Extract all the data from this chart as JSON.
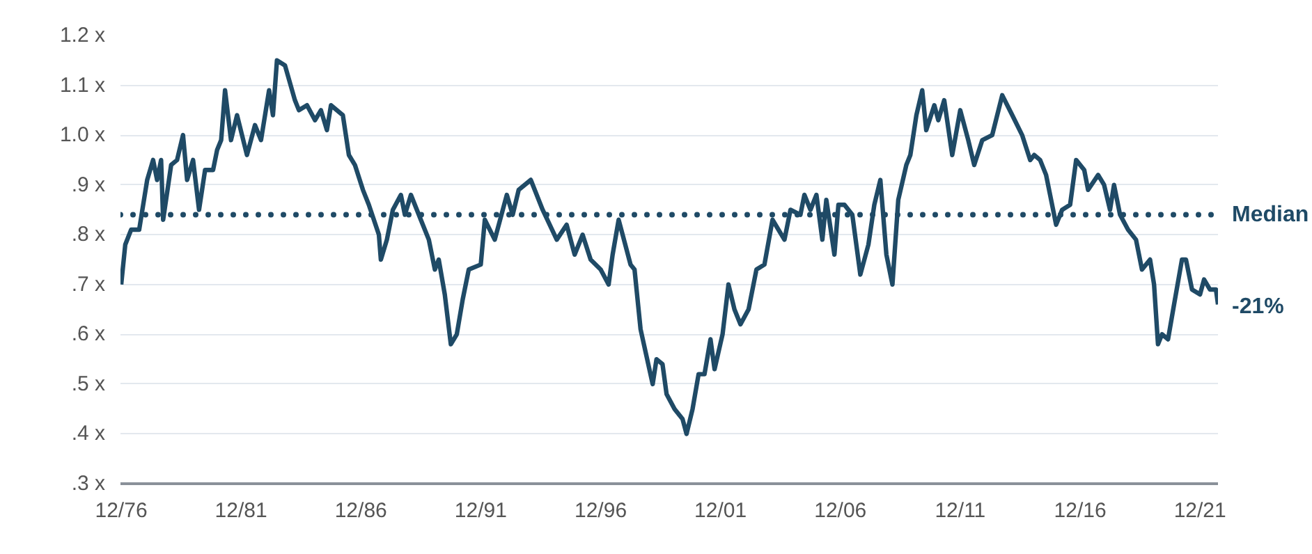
{
  "chart_data": {
    "type": "line",
    "color": "#1f4a66",
    "line_style": "solid",
    "marker": "none",
    "grid": "y",
    "x": [
      "1976-12",
      "1977-02",
      "1977-05",
      "1977-09",
      "1977-11",
      "1978-01",
      "1978-04",
      "1978-06",
      "1978-08",
      "1978-09",
      "1979-01",
      "1979-04",
      "1979-07",
      "1979-09",
      "1979-12",
      "1980-03",
      "1980-06",
      "1980-10",
      "1980-12",
      "1981-02",
      "1981-04",
      "1981-07",
      "1981-10",
      "1982-03",
      "1982-07",
      "1982-10",
      "1983-02",
      "1983-04",
      "1983-06",
      "1983-10",
      "1984-03",
      "1984-05",
      "1984-09",
      "1985-01",
      "1985-04",
      "1985-07",
      "1985-09",
      "1986-03",
      "1986-06",
      "1986-09",
      "1987-01",
      "1987-04",
      "1987-09",
      "1987-10",
      "1988-01",
      "1988-04",
      "1988-08",
      "1988-10",
      "1989-01",
      "1989-06",
      "1989-10",
      "1990-01",
      "1990-03",
      "1990-06",
      "1990-09",
      "1990-12",
      "1991-03",
      "1991-06",
      "1991-12",
      "1992-02",
      "1992-07",
      "1993-01",
      "1993-04",
      "1993-07",
      "1994-01",
      "1994-07",
      "1995-02",
      "1995-07",
      "1995-11",
      "1996-03",
      "1996-07",
      "1996-12",
      "1997-04",
      "1997-06",
      "1997-09",
      "1998-03",
      "1998-05",
      "1998-08",
      "1999-02",
      "1999-04",
      "1999-07",
      "1999-09",
      "2000-01",
      "2000-05",
      "2000-07",
      "2000-10",
      "2001-01",
      "2001-04",
      "2001-07",
      "2001-09",
      "2002-01",
      "2002-04",
      "2002-07",
      "2002-10",
      "2003-02",
      "2003-06",
      "2003-10",
      "2004-02",
      "2004-08",
      "2004-11",
      "2005-04",
      "2005-06",
      "2005-09",
      "2005-12",
      "2006-03",
      "2006-05",
      "2006-09",
      "2006-11",
      "2007-02",
      "2007-06",
      "2007-10",
      "2008-02",
      "2008-05",
      "2008-08",
      "2008-11",
      "2009-02",
      "2009-05",
      "2009-09",
      "2009-11",
      "2010-02",
      "2010-05",
      "2010-07",
      "2010-11",
      "2011-01",
      "2011-04",
      "2011-08",
      "2011-12",
      "2012-04",
      "2012-07",
      "2012-11",
      "2013-04",
      "2013-09",
      "2014-02",
      "2014-07",
      "2014-11",
      "2015-01",
      "2015-04",
      "2015-07",
      "2015-12",
      "2016-03",
      "2016-07",
      "2016-10",
      "2017-02",
      "2017-04",
      "2017-09",
      "2017-12",
      "2018-03",
      "2018-05",
      "2018-08",
      "2018-12",
      "2019-04",
      "2019-07",
      "2019-11",
      "2020-01",
      "2020-03",
      "2020-05",
      "2020-08",
      "2020-11",
      "2021-03",
      "2021-05",
      "2021-08",
      "2021-12",
      "2022-02",
      "2022-05",
      "2022-08",
      "2022-09"
    ],
    "values": [
      0.7,
      0.78,
      0.81,
      0.81,
      0.86,
      0.91,
      0.95,
      0.91,
      0.95,
      0.83,
      0.94,
      0.95,
      1.0,
      0.91,
      0.95,
      0.85,
      0.93,
      0.93,
      0.97,
      0.99,
      1.09,
      0.99,
      1.04,
      0.96,
      1.02,
      0.99,
      1.09,
      1.04,
      1.15,
      1.14,
      1.07,
      1.05,
      1.06,
      1.03,
      1.05,
      1.01,
      1.06,
      1.04,
      0.96,
      0.94,
      0.89,
      0.86,
      0.8,
      0.75,
      0.79,
      0.85,
      0.88,
      0.84,
      0.88,
      0.83,
      0.79,
      0.73,
      0.75,
      0.68,
      0.58,
      0.6,
      0.67,
      0.73,
      0.74,
      0.83,
      0.79,
      0.88,
      0.84,
      0.89,
      0.91,
      0.85,
      0.79,
      0.82,
      0.76,
      0.8,
      0.75,
      0.73,
      0.7,
      0.76,
      0.83,
      0.74,
      0.73,
      0.61,
      0.5,
      0.55,
      0.54,
      0.48,
      0.45,
      0.43,
      0.4,
      0.45,
      0.52,
      0.52,
      0.59,
      0.53,
      0.6,
      0.7,
      0.65,
      0.62,
      0.65,
      0.73,
      0.74,
      0.83,
      0.79,
      0.85,
      0.84,
      0.88,
      0.85,
      0.88,
      0.79,
      0.87,
      0.76,
      0.86,
      0.86,
      0.84,
      0.72,
      0.78,
      0.86,
      0.91,
      0.76,
      0.7,
      0.87,
      0.94,
      0.96,
      1.04,
      1.09,
      1.01,
      1.06,
      1.03,
      1.07,
      0.96,
      1.05,
      0.99,
      0.94,
      0.99,
      1.0,
      1.08,
      1.04,
      1.0,
      0.95,
      0.96,
      0.95,
      0.92,
      0.82,
      0.85,
      0.86,
      0.95,
      0.93,
      0.89,
      0.92,
      0.9,
      0.85,
      0.9,
      0.84,
      0.81,
      0.79,
      0.73,
      0.75,
      0.7,
      0.58,
      0.6,
      0.59,
      0.66,
      0.75,
      0.75,
      0.69,
      0.68,
      0.71,
      0.69,
      0.69,
      0.66
    ],
    "xlim": [
      "1976-11-20",
      "2022-09"
    ],
    "ylim": [
      0.3,
      1.2
    ],
    "xticks": [
      {
        "value": "1976-12",
        "label": "12/76"
      },
      {
        "value": "1981-12",
        "label": "12/81"
      },
      {
        "value": "1986-12",
        "label": "12/86"
      },
      {
        "value": "1991-12",
        "label": "12/91"
      },
      {
        "value": "1996-12",
        "label": "12/96"
      },
      {
        "value": "2001-12",
        "label": "12/01"
      },
      {
        "value": "2006-12",
        "label": "12/06"
      },
      {
        "value": "2011-12",
        "label": "12/11"
      },
      {
        "value": "2016-12",
        "label": "12/16"
      },
      {
        "value": "2021-12",
        "label": "12/21"
      }
    ],
    "yticks": [
      {
        "value": 0.3,
        "label": ".3 x"
      },
      {
        "value": 0.4,
        "label": ".4 x"
      },
      {
        "value": 0.5,
        "label": ".5 x"
      },
      {
        "value": 0.6,
        "label": ".6 x"
      },
      {
        "value": 0.7,
        "label": ".7 x"
      },
      {
        "value": 0.8,
        "label": ".8 x"
      },
      {
        "value": 0.9,
        "label": ".9 x"
      },
      {
        "value": 1.0,
        "label": "1.0 x"
      },
      {
        "value": 1.1,
        "label": "1.1 x"
      },
      {
        "value": 1.2,
        "label": "1.2 x"
      }
    ],
    "ref_lines": [
      {
        "axis": "y",
        "value": 0.84,
        "label": "Median",
        "color": "#1f4a66",
        "line_style": "dotted"
      }
    ],
    "annotations": [
      "-21%"
    ]
  }
}
